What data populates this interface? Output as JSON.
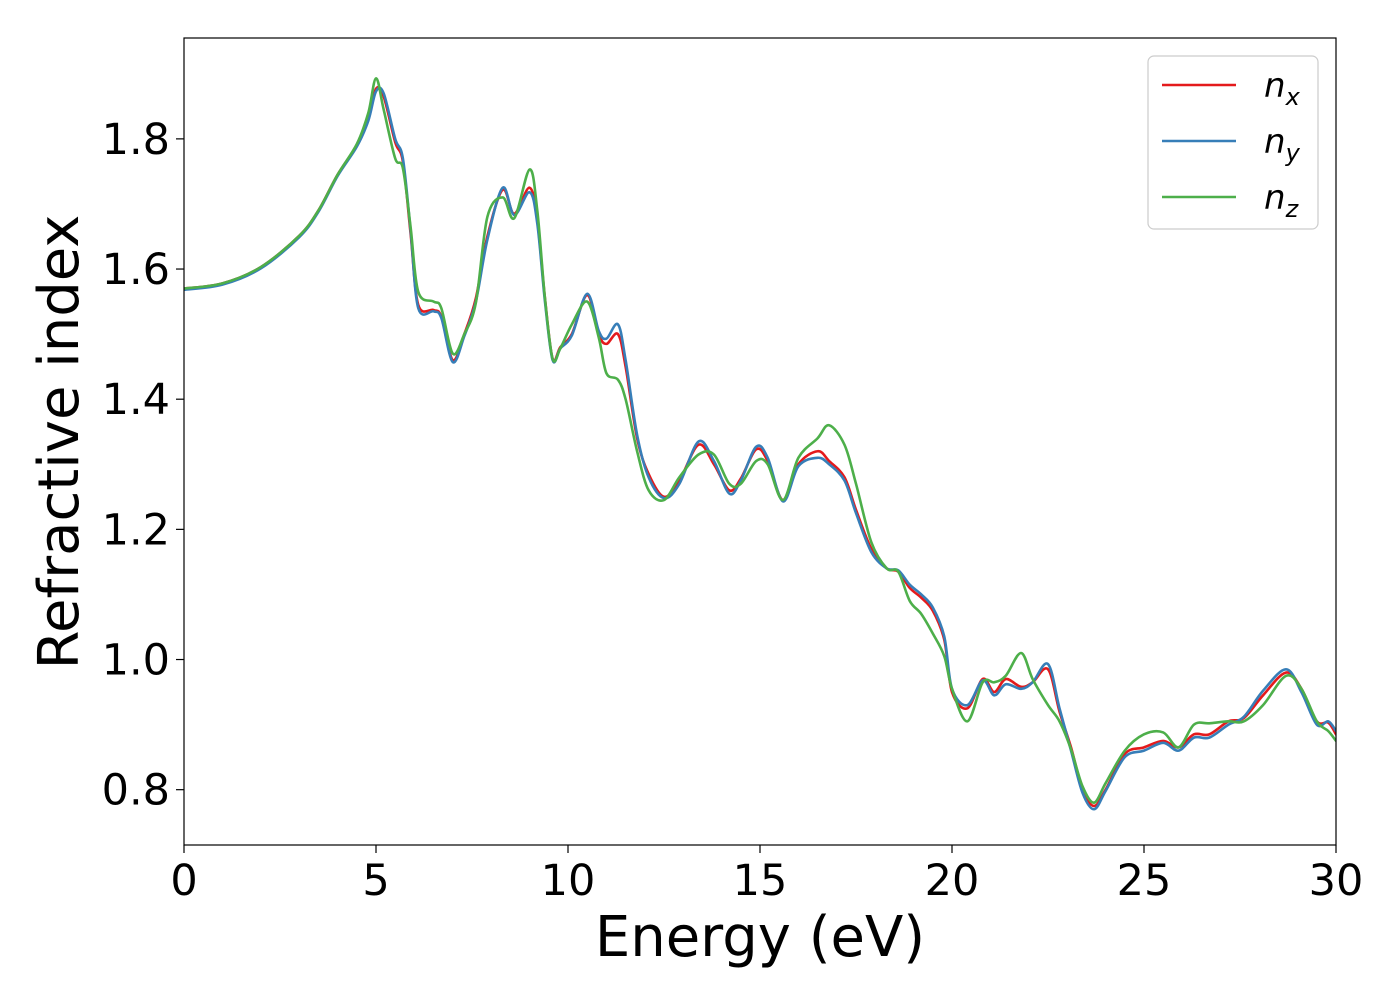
{
  "chart_data": {
    "type": "line",
    "xlabel": "Energy (eV)",
    "ylabel": "Refractive index",
    "xlim": [
      0,
      30
    ],
    "ylim": [
      0.715,
      1.955
    ],
    "xticks": [
      0,
      5,
      10,
      15,
      20,
      25,
      30
    ],
    "yticks": [
      0.8,
      1.0,
      1.2,
      1.4,
      1.6,
      1.8
    ],
    "grid": false,
    "legend_position": "top-right",
    "series": [
      {
        "name": "n",
        "subscript": "x",
        "color": "#e41a1c",
        "x": [
          0,
          1,
          2,
          3,
          3.5,
          4,
          4.5,
          4.8,
          5.0,
          5.2,
          5.5,
          5.7,
          5.9,
          6.1,
          6.5,
          6.7,
          7.0,
          7.3,
          7.6,
          7.9,
          8.3,
          8.6,
          9.0,
          9.2,
          9.4,
          9.6,
          9.8,
          10.1,
          10.5,
          10.8,
          11.0,
          11.3,
          11.5,
          11.8,
          12.1,
          12.5,
          12.9,
          13.4,
          13.8,
          14.2,
          14.5,
          14.9,
          15.2,
          15.6,
          16.0,
          16.5,
          16.8,
          17.2,
          17.5,
          17.9,
          18.3,
          18.6,
          18.9,
          19.2,
          19.5,
          19.8,
          20.0,
          20.4,
          20.8,
          21.1,
          21.4,
          21.8,
          22.1,
          22.5,
          22.8,
          23.1,
          23.4,
          23.7,
          24.0,
          24.5,
          25.0,
          25.5,
          25.9,
          26.3,
          26.7,
          27.2,
          27.6,
          28.1,
          28.7,
          29.1,
          29.5,
          29.8,
          30.0
        ],
        "values": [
          1.57,
          1.578,
          1.603,
          1.651,
          1.69,
          1.745,
          1.79,
          1.83,
          1.877,
          1.865,
          1.795,
          1.765,
          1.655,
          1.545,
          1.537,
          1.527,
          1.46,
          1.5,
          1.555,
          1.65,
          1.722,
          1.685,
          1.725,
          1.675,
          1.555,
          1.462,
          1.48,
          1.5,
          1.56,
          1.5,
          1.485,
          1.5,
          1.45,
          1.34,
          1.285,
          1.25,
          1.275,
          1.33,
          1.3,
          1.26,
          1.278,
          1.323,
          1.305,
          1.245,
          1.3,
          1.32,
          1.305,
          1.28,
          1.23,
          1.17,
          1.14,
          1.135,
          1.11,
          1.095,
          1.075,
          1.03,
          0.95,
          0.925,
          0.97,
          0.95,
          0.97,
          0.958,
          0.965,
          0.985,
          0.92,
          0.865,
          0.8,
          0.775,
          0.8,
          0.855,
          0.865,
          0.875,
          0.865,
          0.885,
          0.885,
          0.905,
          0.91,
          0.945,
          0.98,
          0.955,
          0.905,
          0.903,
          0.885
        ]
      },
      {
        "name": "n",
        "subscript": "y",
        "color": "#377eb8",
        "x": [
          0,
          1,
          2,
          3,
          3.5,
          4,
          4.5,
          4.8,
          5.0,
          5.2,
          5.5,
          5.7,
          5.9,
          6.1,
          6.5,
          6.7,
          7.0,
          7.3,
          7.6,
          7.9,
          8.3,
          8.6,
          9.0,
          9.2,
          9.4,
          9.6,
          9.8,
          10.1,
          10.5,
          10.8,
          11.0,
          11.3,
          11.5,
          11.8,
          12.1,
          12.5,
          12.9,
          13.4,
          13.8,
          14.2,
          14.5,
          14.9,
          15.2,
          15.6,
          16.0,
          16.5,
          16.8,
          17.2,
          17.5,
          17.9,
          18.3,
          18.6,
          18.9,
          19.2,
          19.5,
          19.8,
          20.0,
          20.4,
          20.8,
          21.1,
          21.4,
          21.8,
          22.1,
          22.5,
          22.8,
          23.1,
          23.4,
          23.7,
          24.0,
          24.5,
          25.0,
          25.5,
          25.9,
          26.3,
          26.7,
          27.2,
          27.6,
          28.1,
          28.7,
          29.1,
          29.5,
          29.8,
          30.0
        ],
        "values": [
          1.568,
          1.576,
          1.601,
          1.649,
          1.688,
          1.743,
          1.788,
          1.828,
          1.873,
          1.87,
          1.8,
          1.77,
          1.66,
          1.54,
          1.535,
          1.525,
          1.457,
          1.497,
          1.55,
          1.645,
          1.725,
          1.683,
          1.718,
          1.67,
          1.55,
          1.46,
          1.478,
          1.498,
          1.562,
          1.505,
          1.493,
          1.515,
          1.46,
          1.345,
          1.28,
          1.248,
          1.27,
          1.335,
          1.305,
          1.255,
          1.275,
          1.327,
          1.31,
          1.243,
          1.297,
          1.31,
          1.3,
          1.275,
          1.225,
          1.165,
          1.14,
          1.137,
          1.115,
          1.1,
          1.08,
          1.035,
          0.955,
          0.93,
          0.968,
          0.945,
          0.962,
          0.955,
          0.965,
          0.993,
          0.925,
          0.86,
          0.795,
          0.77,
          0.798,
          0.85,
          0.86,
          0.872,
          0.86,
          0.88,
          0.88,
          0.9,
          0.912,
          0.952,
          0.985,
          0.95,
          0.9,
          0.905,
          0.89
        ]
      },
      {
        "name": "n",
        "subscript": "z",
        "color": "#4daf4a",
        "x": [
          0,
          1,
          2,
          3,
          3.5,
          4,
          4.5,
          4.8,
          5.0,
          5.2,
          5.5,
          5.7,
          5.9,
          6.1,
          6.5,
          6.7,
          7.0,
          7.3,
          7.6,
          7.9,
          8.3,
          8.6,
          9.0,
          9.2,
          9.4,
          9.6,
          9.8,
          10.1,
          10.5,
          10.8,
          11.0,
          11.3,
          11.5,
          11.8,
          12.1,
          12.5,
          12.9,
          13.4,
          13.8,
          14.2,
          14.5,
          14.9,
          15.2,
          15.6,
          16.0,
          16.5,
          16.8,
          17.2,
          17.5,
          17.9,
          18.3,
          18.6,
          18.9,
          19.2,
          19.5,
          19.8,
          20.0,
          20.4,
          20.8,
          21.1,
          21.4,
          21.8,
          22.1,
          22.5,
          22.8,
          23.1,
          23.4,
          23.7,
          24.0,
          24.5,
          25.0,
          25.5,
          25.9,
          26.3,
          26.7,
          27.2,
          27.6,
          28.1,
          28.7,
          29.1,
          29.5,
          29.8,
          30.0
        ],
        "values": [
          1.57,
          1.578,
          1.603,
          1.651,
          1.69,
          1.745,
          1.792,
          1.84,
          1.893,
          1.845,
          1.77,
          1.755,
          1.665,
          1.565,
          1.55,
          1.54,
          1.47,
          1.5,
          1.548,
          1.68,
          1.71,
          1.678,
          1.753,
          1.69,
          1.555,
          1.462,
          1.478,
          1.515,
          1.55,
          1.495,
          1.44,
          1.43,
          1.4,
          1.32,
          1.26,
          1.245,
          1.28,
          1.315,
          1.315,
          1.27,
          1.27,
          1.305,
          1.3,
          1.245,
          1.31,
          1.34,
          1.36,
          1.33,
          1.27,
          1.18,
          1.14,
          1.135,
          1.09,
          1.07,
          1.04,
          1.005,
          0.955,
          0.905,
          0.965,
          0.965,
          0.975,
          1.01,
          0.97,
          0.93,
          0.905,
          0.862,
          0.805,
          0.78,
          0.81,
          0.86,
          0.885,
          0.888,
          0.865,
          0.9,
          0.902,
          0.905,
          0.905,
          0.93,
          0.975,
          0.955,
          0.905,
          0.89,
          0.875
        ]
      }
    ]
  }
}
